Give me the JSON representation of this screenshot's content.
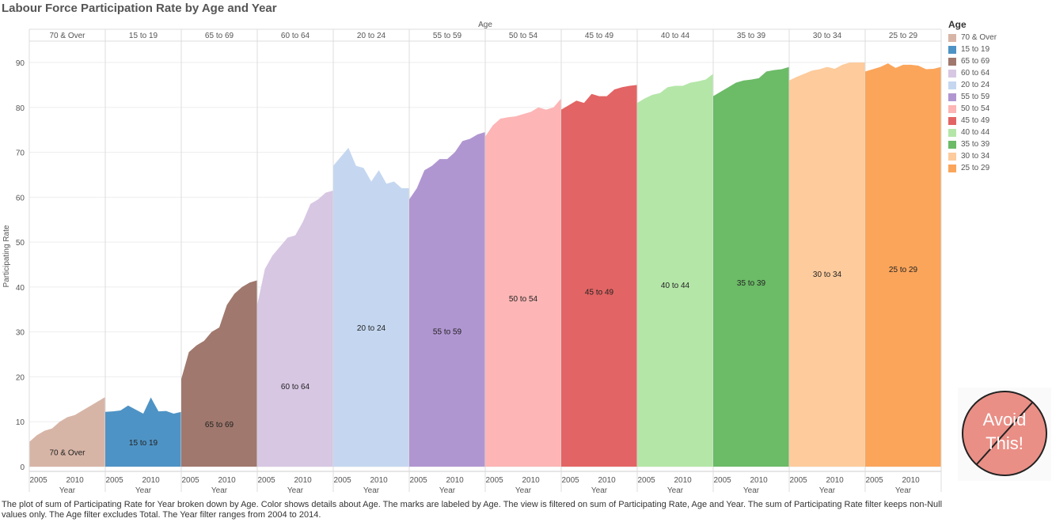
{
  "title": "Labour Force Participation Rate by Age and Year",
  "caption": "The plot of sum of Participating Rate for Year broken down by Age.  Color shows details about Age.  The marks are labeled by Age. The view is filtered on sum of Participating Rate, Age and Year. The sum of Participating Rate filter keeps non-Null values only. The Age filter excludes Total. The Year filter ranges from 2004 to 2014.",
  "stamp_text_line1": "Avoid",
  "stamp_text_line2": "This!",
  "chart_data": {
    "type": "area",
    "column_header_title": "Age",
    "ylabel": "Participating Rate",
    "xlabel": "Year",
    "ylim": [
      0,
      95
    ],
    "yticks": [
      0,
      10,
      20,
      30,
      40,
      50,
      60,
      70,
      80,
      90
    ],
    "xticks": [
      2005,
      2010
    ],
    "x": [
      2004,
      2005,
      2006,
      2007,
      2008,
      2009,
      2010,
      2011,
      2012,
      2013,
      2014
    ],
    "grid": true,
    "legend_title": "Age",
    "legend_position": "right",
    "series": [
      {
        "name": "70 & Over",
        "color": "#d7b5a6",
        "label": "70 & Over",
        "label_y": 3.3,
        "values": [
          5.5,
          7,
          8,
          8.5,
          10,
          11,
          11.5,
          12.5,
          13.5,
          14.5,
          15.5
        ]
      },
      {
        "name": "15 to 19",
        "color": "#4e93c5",
        "label": "15 to 19",
        "label_y": 5.5,
        "values": [
          12.2,
          12.3,
          12.5,
          13.6,
          12.7,
          11.8,
          15.4,
          12.3,
          12.4,
          11.8,
          12.2
        ]
      },
      {
        "name": "65 to 69",
        "color": "#a0786d",
        "label": "65 to 69",
        "label_y": 9.5,
        "values": [
          19.5,
          25.5,
          27,
          28,
          30,
          31,
          36,
          38.5,
          40,
          41,
          41.5
        ]
      },
      {
        "name": "60 to 64",
        "color": "#d7c7e3",
        "label": "60 to 64",
        "label_y": 18,
        "values": [
          36,
          44,
          47,
          49,
          51,
          51.5,
          54.5,
          58.5,
          59.5,
          61,
          61.5
        ]
      },
      {
        "name": "20 to 24",
        "color": "#c5d7f0",
        "label": "20 to 24",
        "label_y": 31,
        "values": [
          67,
          69,
          71,
          67,
          66.5,
          63.5,
          66,
          63,
          63.5,
          62,
          62
        ]
      },
      {
        "name": "55 to 59",
        "color": "#b096d1",
        "label": "55 to 59",
        "label_y": 30.2,
        "values": [
          59.5,
          62,
          66,
          67,
          68.5,
          68.5,
          70,
          72.5,
          73,
          74,
          74.5
        ]
      },
      {
        "name": "50 to 54",
        "color": "#fdb5b5",
        "label": "50 to 54",
        "label_y": 37.5,
        "values": [
          73.5,
          76,
          77.5,
          77.8,
          78,
          78.5,
          79,
          80,
          79.5,
          80,
          82
        ]
      },
      {
        "name": "45 to 49",
        "color": "#e36464",
        "label": "45 to 49",
        "label_y": 39,
        "values": [
          79.5,
          80.5,
          81.5,
          81,
          83,
          82.5,
          82.5,
          84,
          84.5,
          84.8,
          85
        ]
      },
      {
        "name": "40 to 44",
        "color": "#b4e6a8",
        "label": "40 to 44",
        "label_y": 40.5,
        "values": [
          81,
          82,
          82.8,
          83.2,
          84.5,
          84.8,
          84.8,
          85.5,
          85.8,
          86.2,
          87.5
        ]
      },
      {
        "name": "35 to 39",
        "color": "#6cbb67",
        "label": "35 to 39",
        "label_y": 41,
        "values": [
          82.5,
          83.5,
          84.5,
          85.5,
          86,
          86.2,
          86.5,
          88,
          88.3,
          88.5,
          89
        ]
      },
      {
        "name": "30 to 34",
        "color": "#fdcb9c",
        "label": "30 to 34",
        "label_y": 43,
        "values": [
          86,
          86.8,
          87.5,
          88.2,
          88.5,
          89,
          88.6,
          89.5,
          90,
          90,
          90
        ]
      },
      {
        "name": "25 to 29",
        "color": "#fba55b",
        "label": "25 to 29",
        "label_y": 44,
        "values": [
          88,
          88.5,
          89,
          89.8,
          88.8,
          89.5,
          89.5,
          89.3,
          88.5,
          88.6,
          89
        ]
      }
    ]
  }
}
